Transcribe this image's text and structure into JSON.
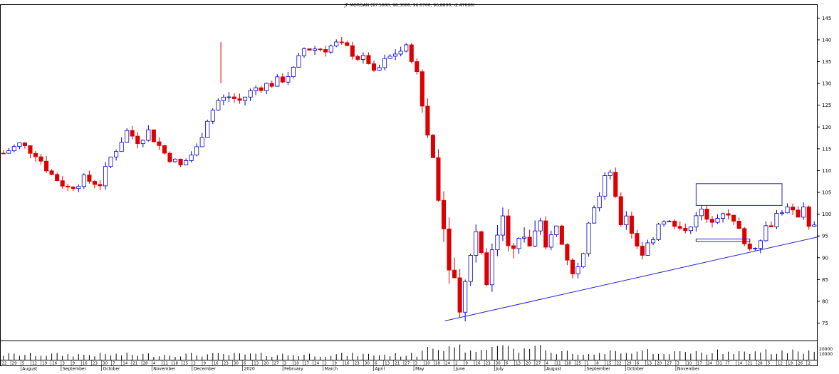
{
  "chart_data": {
    "type": "candlestick",
    "title": "JP MORGAN (97.5000, 98.3000, 96.0700, 96.8800, -2.47000)",
    "y_axis": {
      "range": [
        71,
        148
      ],
      "ticks": [
        75,
        80,
        85,
        90,
        95,
        100,
        105,
        110,
        115,
        120,
        125,
        130,
        135,
        140,
        145
      ],
      "side": "right"
    },
    "volume_axis": {
      "ticks": [
        "20000",
        "10000"
      ]
    },
    "day_labels": [
      "22",
      "29",
      "5",
      "12",
      "19",
      "26",
      "3",
      "9",
      "16",
      "23",
      "30",
      "7",
      "14",
      "21",
      "28",
      "4",
      "11",
      "18",
      "25",
      "2",
      "9",
      "16",
      "23",
      "30",
      "6",
      "13",
      "20",
      "27",
      "3",
      "10",
      "17",
      "24",
      "2",
      "9",
      "16",
      "23",
      "30",
      "6",
      "13",
      "21",
      "27",
      "3",
      "10",
      "18",
      "24",
      "2",
      "9",
      "16",
      "23",
      "30",
      "6",
      "13",
      "20",
      "27",
      "4",
      "11",
      "18",
      "25",
      "1",
      "8",
      "15",
      "22",
      "29",
      "6",
      "13",
      "20",
      "27",
      "3",
      "10",
      "17",
      "24",
      "31",
      "7",
      "14",
      "21",
      "28",
      "5",
      "12",
      "19",
      "26",
      "2"
    ],
    "month_labels": [
      {
        "label": "August",
        "day_index": 2
      },
      {
        "label": "September",
        "day_index": 6
      },
      {
        "label": "October",
        "day_index": 10
      },
      {
        "label": "November",
        "day_index": 15
      },
      {
        "label": "December",
        "day_index": 19
      },
      {
        "label": "2020",
        "day_index": 24
      },
      {
        "label": "February",
        "day_index": 28
      },
      {
        "label": "March",
        "day_index": 32
      },
      {
        "label": "April",
        "day_index": 37
      },
      {
        "label": "May",
        "day_index": 41
      },
      {
        "label": "June",
        "day_index": 45
      },
      {
        "label": "July",
        "day_index": 49
      },
      {
        "label": "August",
        "day_index": 54
      },
      {
        "label": "September",
        "day_index": 58
      },
      {
        "label": "October",
        "day_index": 62
      },
      {
        "label": "November",
        "day_index": 67
      }
    ],
    "price_path": [
      [
        0,
        114
      ],
      [
        3,
        116
      ],
      [
        6,
        114
      ],
      [
        9,
        109
      ],
      [
        12,
        106
      ],
      [
        15,
        108
      ],
      [
        18,
        107
      ],
      [
        20,
        113
      ],
      [
        23,
        119
      ],
      [
        25,
        117
      ],
      [
        27,
        119
      ],
      [
        30,
        114
      ],
      [
        33,
        111
      ],
      [
        36,
        115
      ],
      [
        38,
        122
      ],
      [
        40,
        126
      ],
      [
        42,
        127
      ],
      [
        44,
        126
      ],
      [
        47,
        129
      ],
      [
        50,
        130
      ],
      [
        52,
        131
      ],
      [
        54,
        133
      ],
      [
        56,
        138
      ],
      [
        58,
        138
      ],
      [
        60,
        138
      ],
      [
        62,
        139
      ],
      [
        64,
        138
      ],
      [
        66,
        136
      ],
      [
        68,
        135
      ],
      [
        69,
        132
      ],
      [
        71,
        135
      ],
      [
        73,
        137
      ],
      [
        75,
        138
      ],
      [
        76,
        136
      ],
      [
        77,
        132
      ],
      [
        78,
        125
      ],
      [
        79,
        118
      ],
      [
        80,
        113
      ],
      [
        81,
        106
      ],
      [
        82,
        97
      ],
      [
        83,
        90
      ],
      [
        84,
        85
      ],
      [
        85,
        80
      ],
      [
        86,
        84
      ],
      [
        87,
        92
      ],
      [
        88,
        96
      ],
      [
        89,
        92
      ],
      [
        90,
        86
      ],
      [
        91,
        90
      ],
      [
        92,
        96
      ],
      [
        93,
        101
      ],
      [
        94,
        95
      ],
      [
        95,
        91
      ],
      [
        96,
        93
      ],
      [
        97,
        95
      ],
      [
        98,
        93
      ],
      [
        99,
        95
      ],
      [
        100,
        96
      ],
      [
        101,
        92
      ],
      [
        102,
        96
      ],
      [
        103,
        97
      ],
      [
        104,
        93
      ],
      [
        105,
        90
      ],
      [
        106,
        86
      ],
      [
        107,
        89
      ],
      [
        108,
        92
      ],
      [
        109,
        99
      ],
      [
        110,
        102
      ],
      [
        111,
        104
      ],
      [
        112,
        108
      ],
      [
        113,
        110
      ],
      [
        114,
        103
      ],
      [
        115,
        98
      ],
      [
        116,
        100
      ],
      [
        117,
        96
      ],
      [
        118,
        93
      ],
      [
        119,
        91
      ],
      [
        120,
        93
      ],
      [
        121,
        95
      ],
      [
        122,
        98
      ],
      [
        123,
        99
      ],
      [
        124,
        98
      ],
      [
        125,
        97
      ],
      [
        126,
        96
      ],
      [
        127,
        97
      ],
      [
        128,
        98
      ],
      [
        129,
        99
      ],
      [
        130,
        101
      ],
      [
        131,
        98
      ],
      [
        132,
        99
      ],
      [
        133,
        100
      ],
      [
        134,
        101
      ],
      [
        135,
        99
      ],
      [
        136,
        98
      ],
      [
        137,
        96
      ],
      [
        138,
        94
      ],
      [
        139,
        92
      ],
      [
        140,
        93
      ],
      [
        141,
        95
      ],
      [
        142,
        97
      ],
      [
        143,
        98
      ],
      [
        144,
        100
      ],
      [
        145,
        101
      ],
      [
        146,
        101
      ],
      [
        147,
        100
      ],
      [
        148,
        100
      ],
      [
        149,
        102
      ],
      [
        150,
        98
      ],
      [
        151,
        97
      ]
    ],
    "spike": {
      "x": 40.5,
      "high": 139.5
    },
    "trend_line": {
      "from": [
        82.2,
        75.5
      ],
      "to": [
        151,
        94.8
      ]
    },
    "annotation_boxes": [
      {
        "x1": 129,
        "x2": 145,
        "y1": 102,
        "y2": 107
      },
      {
        "x1": 129,
        "x2": 139,
        "y1": 93.7,
        "y2": 94.3
      }
    ],
    "colors": {
      "up": "#0000cc",
      "down": "#dd0000",
      "line": "#2222cc",
      "grid": "#9aa0d0",
      "text": "#000000"
    },
    "grid": false
  }
}
